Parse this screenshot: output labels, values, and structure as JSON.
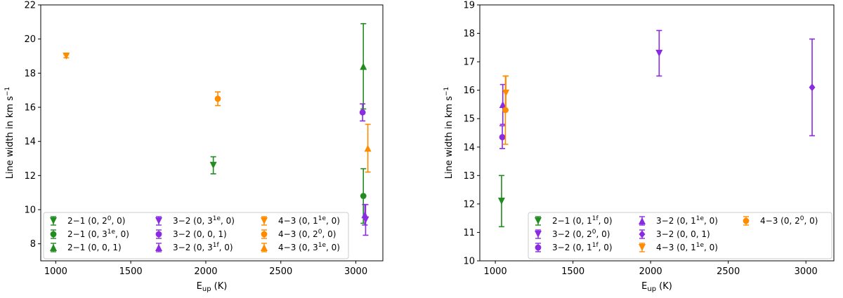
{
  "chart_data": [
    {
      "type": "scatter",
      "xlabel": "E",
      "xlabel_sub": "up",
      "xlabel_unit": " (K)",
      "ylabel": "Line width in km s",
      "ylabel_sup": "−1",
      "xlim": [
        900,
        3180
      ],
      "ylim": [
        7,
        22
      ],
      "xticks": [
        1000,
        1500,
        2000,
        2500,
        3000
      ],
      "yticks": [
        8,
        10,
        12,
        14,
        16,
        18,
        20,
        22
      ],
      "grid": false,
      "legend": {
        "placement": "bottom",
        "columns": 3
      },
      "series": [
        {
          "label": {
            "pre": "2−1 (0, 2",
            "sup": "0",
            "post": ", 0)"
          },
          "color": "#228b22",
          "marker": "triangle-down",
          "points": [
            {
              "x": 2050,
              "y": 12.6,
              "err": 0.5
            }
          ]
        },
        {
          "label": {
            "pre": "2−1 (0, 3",
            "sup": "1e",
            "post": ", 0)"
          },
          "color": "#228b22",
          "marker": "circle",
          "points": [
            {
              "x": 3050,
              "y": 10.8,
              "err": 1.6
            }
          ]
        },
        {
          "label": {
            "pre": "2−1 (0, 0, 1)",
            "sup": "",
            "post": ""
          },
          "color": "#228b22",
          "marker": "triangle-up",
          "points": [
            {
              "x": 3050,
              "y": 18.4,
              "err": 2.5
            }
          ]
        },
        {
          "label": {
            "pre": "3−2 (0, 3",
            "sup": "1e",
            "post": ", 0)"
          },
          "color": "#8a2be2",
          "marker": "triangle-down",
          "points": [
            {
              "x": 3065,
              "y": 9.4,
              "err": 0.9
            }
          ]
        },
        {
          "label": {
            "pre": "3−2 (0, 0, 1)",
            "sup": "",
            "post": ""
          },
          "color": "#8a2be2",
          "marker": "circle",
          "points": [
            {
              "x": 3045,
              "y": 15.7,
              "err": 0.5
            }
          ]
        },
        {
          "label": {
            "pre": "3−2 (0, 3",
            "sup": "1f",
            "post": ", 0)"
          },
          "color": "#8a2be2",
          "marker": "triangle-up",
          "points": [
            {
              "x": 3060,
              "y": 9.7,
              "err": 0.6
            }
          ]
        },
        {
          "label": {
            "pre": "4−3 (0, 1",
            "sup": "1e",
            "post": ", 0)"
          },
          "color": "#ff8c00",
          "marker": "triangle-down",
          "points": [
            {
              "x": 1070,
              "y": 19.0,
              "err": 0.1
            }
          ]
        },
        {
          "label": {
            "pre": "4−3 (0, 2",
            "sup": "0",
            "post": ", 0)"
          },
          "color": "#ff8c00",
          "marker": "circle",
          "points": [
            {
              "x": 2080,
              "y": 16.5,
              "err": 0.4
            }
          ]
        },
        {
          "label": {
            "pre": "4−3 (0, 3",
            "sup": "1e",
            "post": ", 0)"
          },
          "color": "#ff8c00",
          "marker": "triangle-up",
          "points": [
            {
              "x": 3080,
              "y": 13.6,
              "err": 1.4
            }
          ]
        }
      ]
    },
    {
      "type": "scatter",
      "xlabel": "E",
      "xlabel_sub": "up",
      "xlabel_unit": " (K)",
      "ylabel": "Line width in km s",
      "ylabel_sup": "−1",
      "xlim": [
        900,
        3180
      ],
      "ylim": [
        10,
        19
      ],
      "xticks": [
        1000,
        1500,
        2000,
        2500,
        3000
      ],
      "yticks": [
        10,
        11,
        12,
        13,
        14,
        15,
        16,
        17,
        18,
        19
      ],
      "grid": false,
      "legend": {
        "placement": "bottom-right",
        "columns": 3
      },
      "series": [
        {
          "label": {
            "pre": "2−1 (0, 1",
            "sup": "1f",
            "post": ", 0)"
          },
          "color": "#228b22",
          "marker": "triangle-down",
          "points": [
            {
              "x": 1040,
              "y": 12.1,
              "err": 0.9
            }
          ]
        },
        {
          "label": {
            "pre": "3−2 (0, 2",
            "sup": "0",
            "post": ", 0)"
          },
          "color": "#8a2be2",
          "marker": "triangle-down",
          "points": [
            {
              "x": 2055,
              "y": 17.3,
              "err": 0.8
            }
          ]
        },
        {
          "label": {
            "pre": "3−2 (0, 1",
            "sup": "1f",
            "post": ", 0)"
          },
          "color": "#8a2be2",
          "marker": "circle",
          "points": [
            {
              "x": 1045,
              "y": 14.35,
              "err": 0.4
            }
          ]
        },
        {
          "label": {
            "pre": "3−2 (0, 1",
            "sup": "1e",
            "post": ", 0)"
          },
          "color": "#8a2be2",
          "marker": "triangle-up",
          "points": [
            {
              "x": 1048,
              "y": 15.5,
              "err": 0.7
            }
          ]
        },
        {
          "label": {
            "pre": "3−2 (0, 0, 1)",
            "sup": "",
            "post": ""
          },
          "color": "#8a2be2",
          "marker": "diamond",
          "points": [
            {
              "x": 3040,
              "y": 16.1,
              "err": 1.7
            }
          ]
        },
        {
          "label": {
            "pre": "4−3 (0, 1",
            "sup": "1e",
            "post": ", 0)"
          },
          "color": "#ff8c00",
          "marker": "triangle-down",
          "points": [
            {
              "x": 1068,
              "y": 15.9,
              "err": 0.6
            }
          ]
        },
        {
          "label": {
            "pre": "4−3 (0, 2",
            "sup": "0",
            "post": ", 0)"
          },
          "color": "#ff8c00",
          "marker": "circle",
          "points": [
            {
              "x": 1065,
              "y": 15.3,
              "err": 1.2
            }
          ]
        }
      ]
    }
  ]
}
